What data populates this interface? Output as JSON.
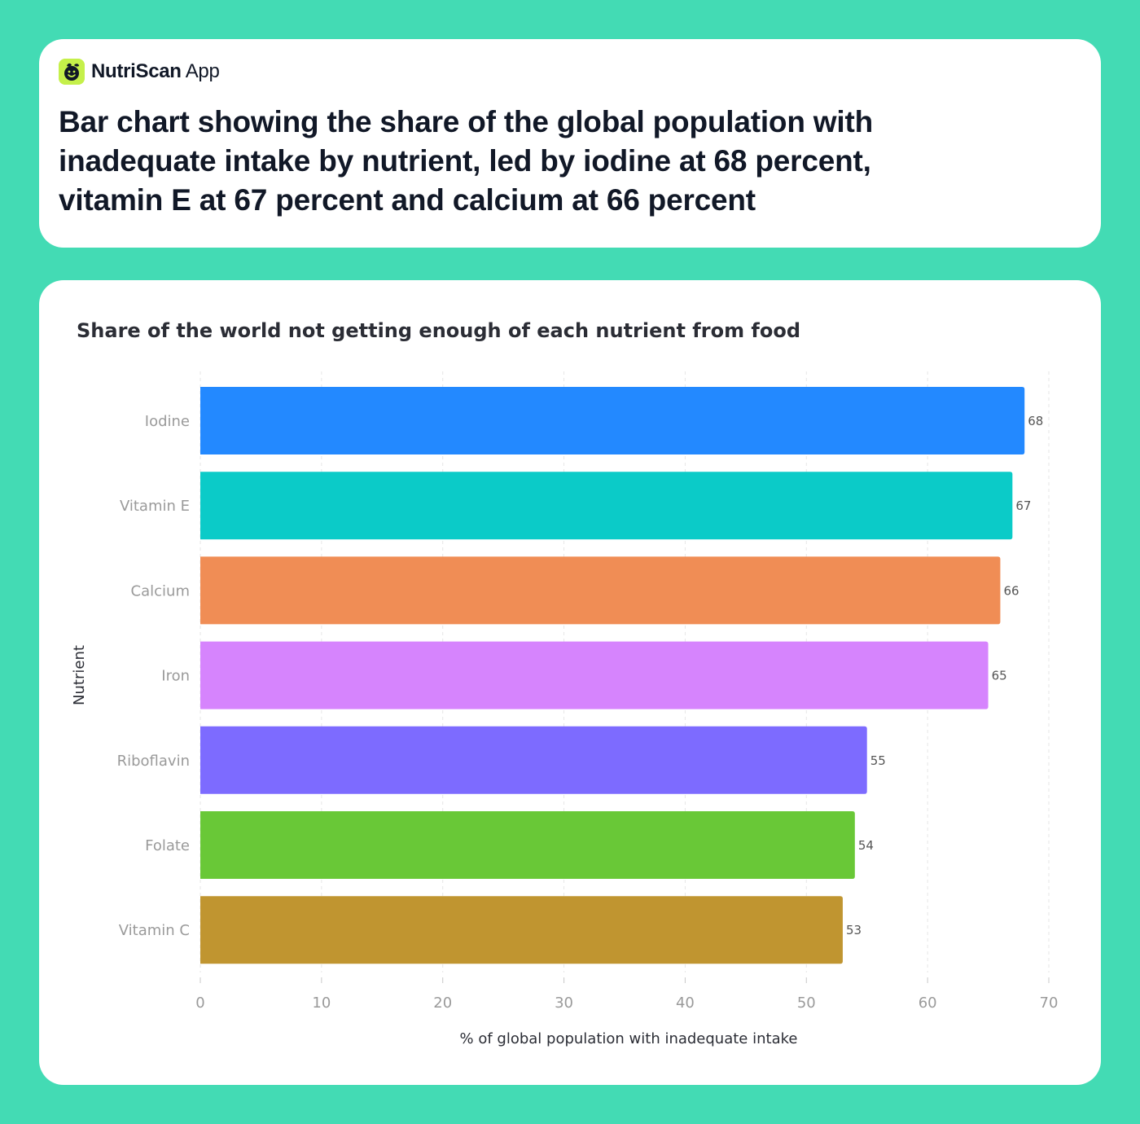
{
  "brand": {
    "name_bold": "NutriScan",
    "name_light": "App",
    "logo_icon": "smiley-leaf-icon",
    "logo_color": "#c5f04a"
  },
  "headline": "Bar chart showing the share of the global population with inadequate intake by nutrient, led by iodine at 68 percent, vitamin E at 67 percent and calcium at 66 percent",
  "chart_data": {
    "type": "bar",
    "orientation": "horizontal",
    "title": "Share of the world not getting enough of each nutrient from food",
    "xlabel": "% of global population with inadequate intake",
    "ylabel": "Nutrient",
    "categories": [
      "Iodine",
      "Vitamin E",
      "Calcium",
      "Iron",
      "Riboflavin",
      "Folate",
      "Vitamin C"
    ],
    "values": [
      68,
      67,
      66,
      65,
      55,
      54,
      53
    ],
    "data_labels": [
      "68",
      "67",
      "66",
      "65",
      "55",
      "54",
      "53"
    ],
    "colors": [
      "#2389ff",
      "#0bcbc8",
      "#f08d55",
      "#d684fd",
      "#7d6bff",
      "#69c837",
      "#c09530"
    ],
    "xlim": [
      0,
      70
    ],
    "xticks": [
      0,
      10,
      20,
      30,
      40,
      50,
      60,
      70
    ],
    "xtick_labels": [
      "0",
      "10",
      "20",
      "30",
      "40",
      "50",
      "60",
      "70"
    ],
    "grid": true,
    "legend": "none"
  }
}
